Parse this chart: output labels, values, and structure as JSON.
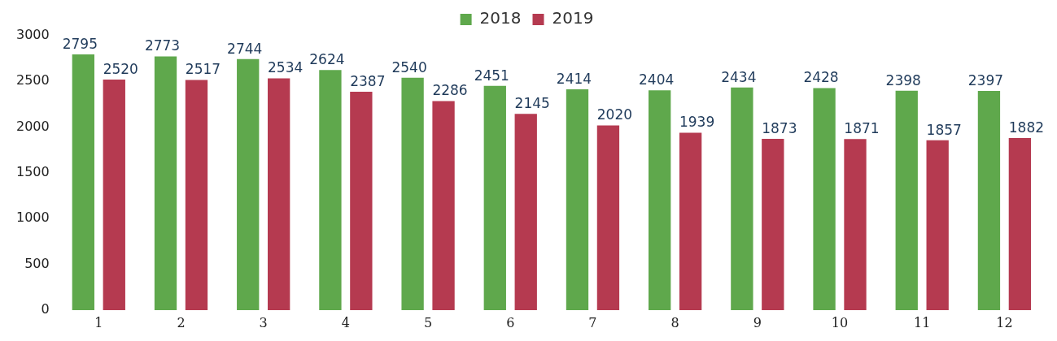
{
  "chart_data": {
    "type": "bar",
    "categories": [
      "1",
      "2",
      "3",
      "4",
      "5",
      "6",
      "7",
      "8",
      "9",
      "10",
      "11",
      "12"
    ],
    "series": [
      {
        "name": "2018",
        "color": "#5fa84c",
        "values": [
          2795,
          2773,
          2744,
          2624,
          2540,
          2451,
          2414,
          2404,
          2434,
          2428,
          2398,
          2397
        ]
      },
      {
        "name": "2019",
        "color": "#b53a50",
        "values": [
          2520,
          2517,
          2534,
          2387,
          2286,
          2145,
          2020,
          1939,
          1873,
          1871,
          1857,
          1882
        ]
      }
    ],
    "ylim": [
      0,
      3000
    ],
    "yticks": [
      0,
      500,
      1000,
      1500,
      2000,
      2500,
      3000
    ],
    "grid": false,
    "legend": "top",
    "data_labels": true
  }
}
